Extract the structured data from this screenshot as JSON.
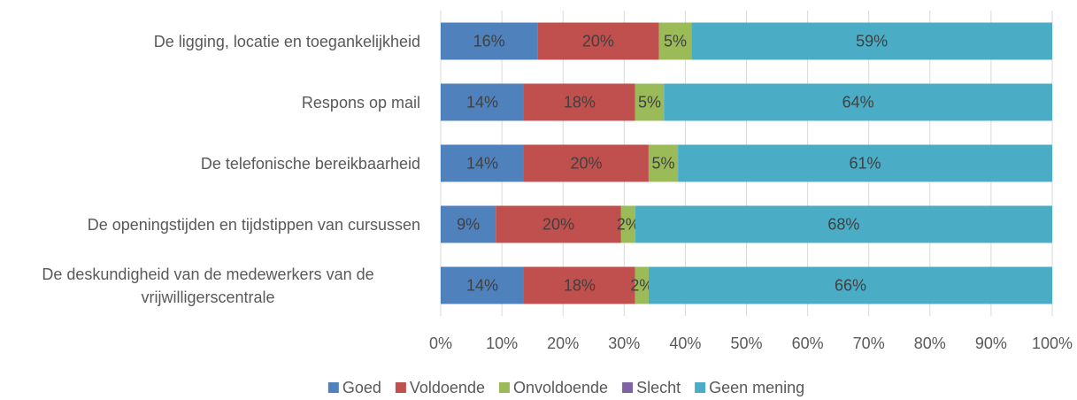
{
  "chart_data": {
    "type": "stacked_barh",
    "categories": [
      "De ligging, locatie en toegankelijkheid",
      "Respons op mail",
      "De telefonische bereikbaarheid",
      "De openingstijden en tijdstippen  van cursussen",
      "De deskundigheid van de medewerkers van de vrijwilligerscentrale"
    ],
    "series": [
      {
        "name": "Goed",
        "color": "#4f81bd",
        "values": [
          15.8,
          13.6,
          13.6,
          9.0,
          13.6
        ],
        "value_labels": [
          "16%",
          "14%",
          "14%",
          "9%",
          "14%"
        ]
      },
      {
        "name": "Voldoende",
        "color": "#c0504d",
        "values": [
          19.9,
          18.2,
          20.4,
          20.5,
          18.2
        ],
        "value_labels": [
          "20%",
          "18%",
          "20%",
          "20%",
          "18%"
        ]
      },
      {
        "name": "Onvoldoende",
        "color": "#9bbb59",
        "values": [
          5.3,
          4.7,
          4.8,
          2.3,
          2.2
        ],
        "value_labels": [
          "5%",
          "5%",
          "5%",
          "2%",
          "2%"
        ]
      },
      {
        "name": "Slecht",
        "color": "#8064a2",
        "values": [
          0,
          0,
          0,
          0,
          0
        ],
        "value_labels": [
          null,
          null,
          null,
          null,
          null
        ]
      },
      {
        "name": "Geen mening",
        "color": "#4bacc6",
        "values": [
          59.0,
          63.5,
          61.2,
          68.2,
          66.0
        ],
        "value_labels": [
          "59%",
          "64%",
          "61%",
          "68%",
          "66%"
        ]
      }
    ],
    "xlim": [
      0,
      100
    ],
    "xticks": [
      {
        "value": 0,
        "label": "0%"
      },
      {
        "value": 10,
        "label": "10%"
      },
      {
        "value": 20,
        "label": "20%"
      },
      {
        "value": 30,
        "label": "30%"
      },
      {
        "value": 40,
        "label": "40%"
      },
      {
        "value": 50,
        "label": "50%"
      },
      {
        "value": 60,
        "label": "60%"
      },
      {
        "value": 70,
        "label": "70%"
      },
      {
        "value": 80,
        "label": "80%"
      },
      {
        "value": 90,
        "label": "90%"
      },
      {
        "value": 100,
        "label": "100%"
      }
    ],
    "grid": true,
    "legend": "bottom"
  }
}
